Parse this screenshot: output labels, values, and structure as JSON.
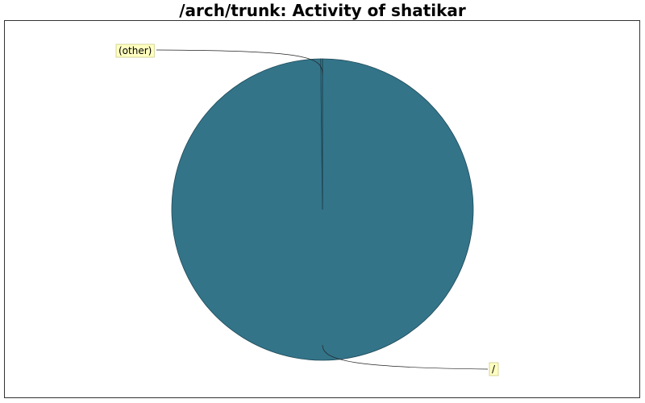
{
  "chart_data": {
    "type": "pie",
    "title": "/arch/trunk: Activity of shatikar",
    "slices": [
      {
        "label": "/",
        "value": 99.8,
        "color": "#337489"
      },
      {
        "label": "(other)",
        "value": 0.2,
        "color": "#337489"
      }
    ],
    "legend": "callout-labels",
    "label_background": "#ffffc0"
  }
}
